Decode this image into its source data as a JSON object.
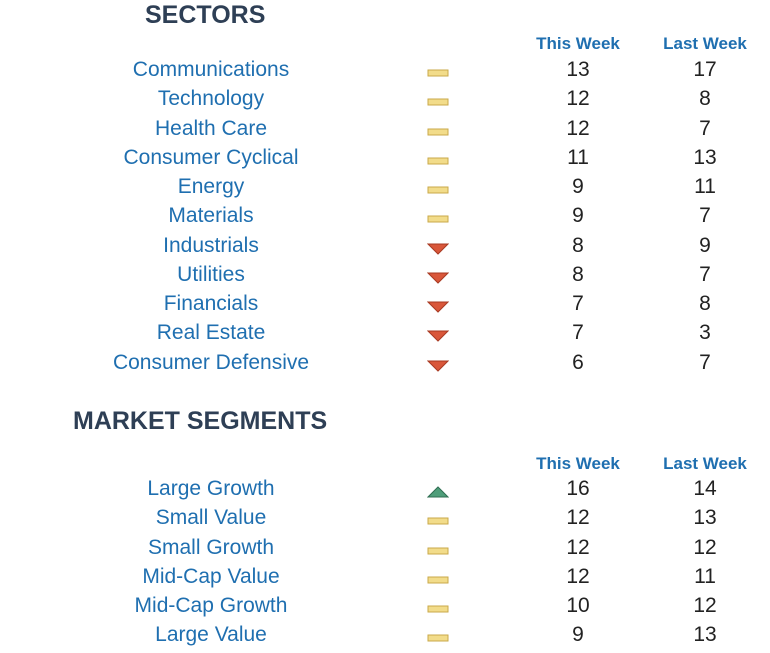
{
  "sectors": {
    "title": "SECTORS",
    "col_this_week": "This Week",
    "col_last_week": "Last Week",
    "rows": [
      {
        "name": "Communications",
        "trend": "flat",
        "this_week": "13",
        "last_week": "17"
      },
      {
        "name": "Technology",
        "trend": "flat",
        "this_week": "12",
        "last_week": "8"
      },
      {
        "name": "Health Care",
        "trend": "flat",
        "this_week": "12",
        "last_week": "7"
      },
      {
        "name": "Consumer Cyclical",
        "trend": "flat",
        "this_week": "11",
        "last_week": "13"
      },
      {
        "name": "Energy",
        "trend": "flat",
        "this_week": "9",
        "last_week": "11"
      },
      {
        "name": "Materials",
        "trend": "flat",
        "this_week": "9",
        "last_week": "7"
      },
      {
        "name": "Industrials",
        "trend": "down",
        "this_week": "8",
        "last_week": "9"
      },
      {
        "name": "Utilities",
        "trend": "down",
        "this_week": "8",
        "last_week": "7"
      },
      {
        "name": "Financials",
        "trend": "down",
        "this_week": "7",
        "last_week": "8"
      },
      {
        "name": "Real Estate",
        "trend": "down",
        "this_week": "7",
        "last_week": "3"
      },
      {
        "name": "Consumer Defensive",
        "trend": "down",
        "this_week": "6",
        "last_week": "7"
      }
    ]
  },
  "market_segments": {
    "title": "MARKET SEGMENTS",
    "col_this_week": "This Week",
    "col_last_week": "Last Week",
    "rows": [
      {
        "name": "Large Growth",
        "trend": "up",
        "this_week": "16",
        "last_week": "14"
      },
      {
        "name": "Small Value",
        "trend": "flat",
        "this_week": "12",
        "last_week": "13"
      },
      {
        "name": "Small Growth",
        "trend": "flat",
        "this_week": "12",
        "last_week": "12"
      },
      {
        "name": "Mid-Cap Value",
        "trend": "flat",
        "this_week": "12",
        "last_week": "11"
      },
      {
        "name": "Mid-Cap Growth",
        "trend": "flat",
        "this_week": "10",
        "last_week": "12"
      },
      {
        "name": "Large Value",
        "trend": "flat",
        "this_week": "9",
        "last_week": "13"
      }
    ]
  },
  "icons": {
    "flat": "flat-bar-icon",
    "down": "down-triangle-icon",
    "up": "up-triangle-icon"
  },
  "colors": {
    "title": "#2e3f55",
    "header": "#1f6fb0",
    "name": "#1f6fb0",
    "value": "#222222",
    "flat": "#f2dc8a",
    "flat_border": "#c9a94a",
    "down": "#d9573a",
    "down_border": "#a83a22",
    "up": "#4f9e7a",
    "up_border": "#2f6e52"
  }
}
